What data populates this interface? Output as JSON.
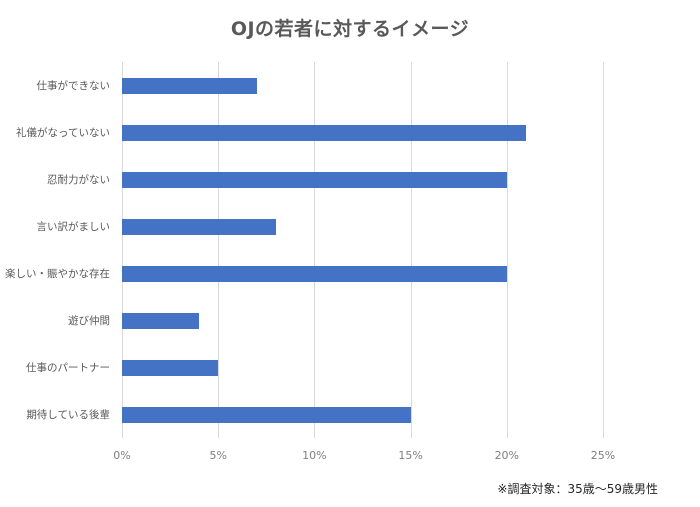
{
  "chart_data": {
    "type": "bar",
    "orientation": "horizontal",
    "title": "OJの若者に対するイメージ",
    "categories": [
      "仕事ができない",
      "礼儀がなっていない",
      "忍耐力がない",
      "言い訳がましい",
      "楽しい・賑やかな存在",
      "遊び仲間",
      "仕事のパートナー",
      "期待している後輩"
    ],
    "values": [
      7,
      21,
      20,
      8,
      20,
      4,
      5,
      15
    ],
    "value_unit": "%",
    "xlabel": "",
    "ylabel": "",
    "xlim": [
      0,
      25
    ],
    "x_ticks": [
      "0%",
      "5%",
      "10%",
      "15%",
      "20%",
      "25%"
    ],
    "grid": "vertical",
    "legend": "none",
    "bar_color": "#4472c4",
    "annotation": "※調査対象：35歳〜59歳男性"
  },
  "footnote": "※調査対象：35歳〜59歳男性"
}
